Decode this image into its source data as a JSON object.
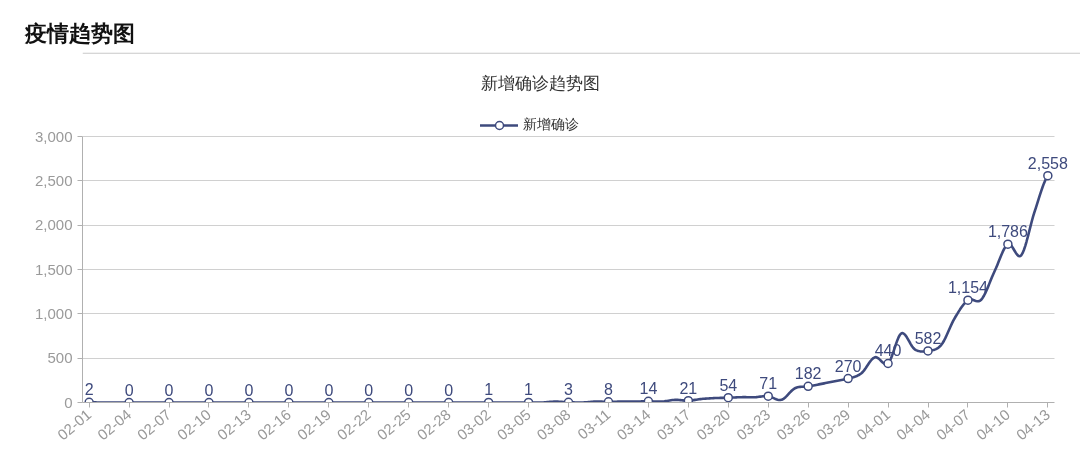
{
  "chart_data": {
    "type": "line",
    "title": "疫情趋势图",
    "subtitle": "新增确诊趋势图",
    "categories": [
      "02-01",
      null,
      null,
      "02-04",
      null,
      null,
      "02-07",
      null,
      null,
      "02-10",
      null,
      null,
      "02-13",
      null,
      null,
      "02-16",
      null,
      null,
      "02-19",
      null,
      null,
      "02-22",
      null,
      null,
      "02-25",
      null,
      null,
      "02-28",
      null,
      null,
      "03-02",
      null,
      null,
      "03-05",
      null,
      null,
      "03-08",
      null,
      null,
      "03-11",
      null,
      null,
      "03-14",
      null,
      null,
      "03-17",
      null,
      null,
      "03-20",
      null,
      null,
      "03-23",
      null,
      null,
      "03-26",
      null,
      null,
      "03-29",
      null,
      null,
      "04-01",
      null,
      null,
      "04-04",
      null,
      null,
      "04-07",
      null,
      null,
      "04-10",
      null,
      null,
      "04-13"
    ],
    "series": [
      {
        "name": "新增确诊",
        "color": "#3e4a7d",
        "marker": "none",
        "values": [
          2,
          0,
          0,
          0,
          0,
          0,
          0,
          0,
          0,
          0,
          0,
          0,
          0,
          0,
          0,
          0,
          0,
          0,
          0,
          0,
          0,
          0,
          0,
          0,
          0,
          0,
          0,
          0,
          0,
          0,
          1,
          0,
          0,
          1,
          0,
          10,
          3,
          0,
          10,
          8,
          10,
          10,
          14,
          10,
          30,
          21,
          40,
          50,
          54,
          60,
          60,
          71,
          30,
          160,
          182,
          210,
          240,
          270,
          330,
          510,
          440,
          780,
          600,
          582,
          650,
          950,
          1154,
          1160,
          1480,
          1786,
          1660,
          2150,
          2558
        ],
        "value_labels": [
          "2",
          null,
          null,
          "0",
          null,
          null,
          "0",
          null,
          null,
          "0",
          null,
          null,
          "0",
          null,
          null,
          "0",
          null,
          null,
          "0",
          null,
          null,
          "0",
          null,
          null,
          "0",
          null,
          null,
          "0",
          null,
          null,
          "1",
          null,
          null,
          "1",
          null,
          null,
          "3",
          null,
          null,
          "8",
          null,
          null,
          "14",
          null,
          null,
          "21",
          null,
          null,
          "54",
          null,
          null,
          "71",
          null,
          null,
          "182",
          null,
          null,
          "270",
          null,
          null,
          "440",
          null,
          null,
          "582",
          null,
          null,
          "1,154",
          null,
          null,
          "1,786",
          null,
          null,
          "2,558"
        ]
      },
      {
        "type": "scatter",
        "color": "#3e4a7d",
        "marker": "circle",
        "x": [
          "02-01",
          "02-04",
          "02-07",
          "02-10",
          "02-13",
          "02-16",
          "02-19",
          "02-22",
          "02-25",
          "02-28",
          "03-02",
          "03-05",
          "03-08",
          "03-11",
          "03-14",
          "03-17",
          "03-20",
          "03-23",
          "03-26",
          "03-29",
          "04-01",
          "04-04",
          "04-07",
          "04-10",
          "04-13"
        ],
        "values": [
          2,
          0,
          0,
          0,
          0,
          0,
          0,
          0,
          0,
          0,
          1,
          1,
          3,
          8,
          14,
          21,
          54,
          71,
          182,
          270,
          440,
          582,
          1154,
          1786,
          2558
        ]
      }
    ],
    "ylim": [
      0,
      3000
    ],
    "yticks": [
      0,
      500,
      {
        "value": 1000,
        "label": "1,000"
      },
      {
        "value": 1500,
        "label": "1,500"
      },
      {
        "value": 2000,
        "label": "2,000"
      },
      {
        "value": 2500,
        "label": "2,500"
      },
      {
        "value": 3000,
        "label": "3,000"
      }
    ],
    "grid": "y",
    "legend": "top",
    "line_style": "solid"
  }
}
